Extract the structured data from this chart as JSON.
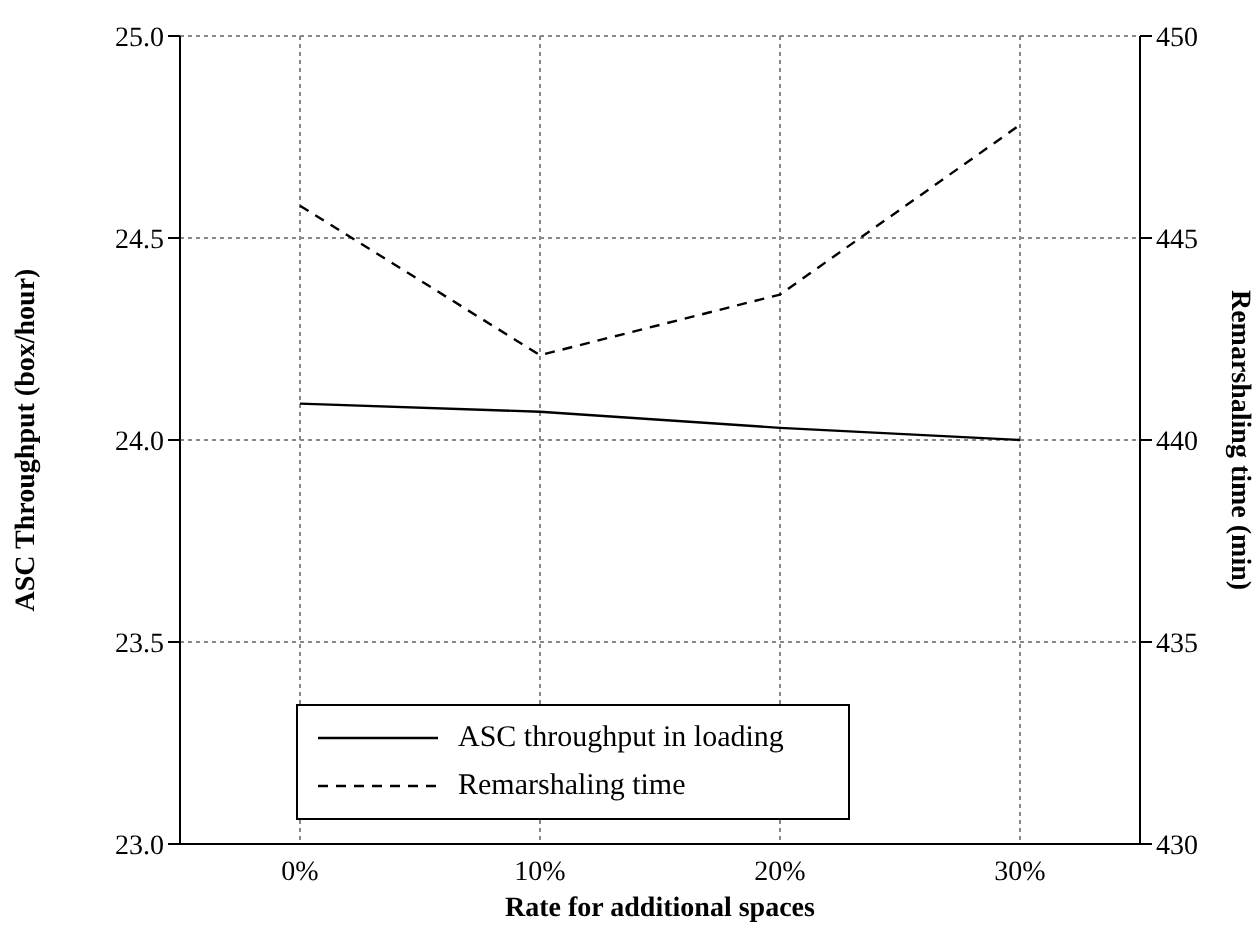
{
  "chart_data": {
    "type": "line",
    "xlabel": "Rate for additional spaces",
    "ylabel": "ASC Throughput (box/hour)",
    "y2label": "Remarshaling time (min)",
    "categories": [
      "0%",
      "10%",
      "20%",
      "30%"
    ],
    "series": [
      {
        "name": "ASC throughput in loading",
        "color": "#000000",
        "line_style": "solid",
        "values": [
          24.09,
          24.07,
          24.03,
          24.0
        ]
      },
      {
        "name": "Remarshaling time",
        "color": "#000000",
        "line_style": "dashed",
        "axis": "y2",
        "values": [
          445.8,
          442.1,
          443.6,
          447.8
        ]
      }
    ],
    "ylim": [
      23.0,
      25.0
    ],
    "yticks": [
      {
        "value": 23,
        "label": "23.0"
      },
      {
        "value": 23.5,
        "label": "23.5"
      },
      {
        "value": 24,
        "label": "24.0"
      },
      {
        "value": 24.5,
        "label": "24.5"
      },
      {
        "value": 25,
        "label": "25.0"
      }
    ],
    "y2lim": [
      430,
      450
    ],
    "y2ticks": [
      430,
      435,
      440,
      445,
      450
    ],
    "grid": true,
    "legend": "bottom",
    "marker": "none"
  }
}
